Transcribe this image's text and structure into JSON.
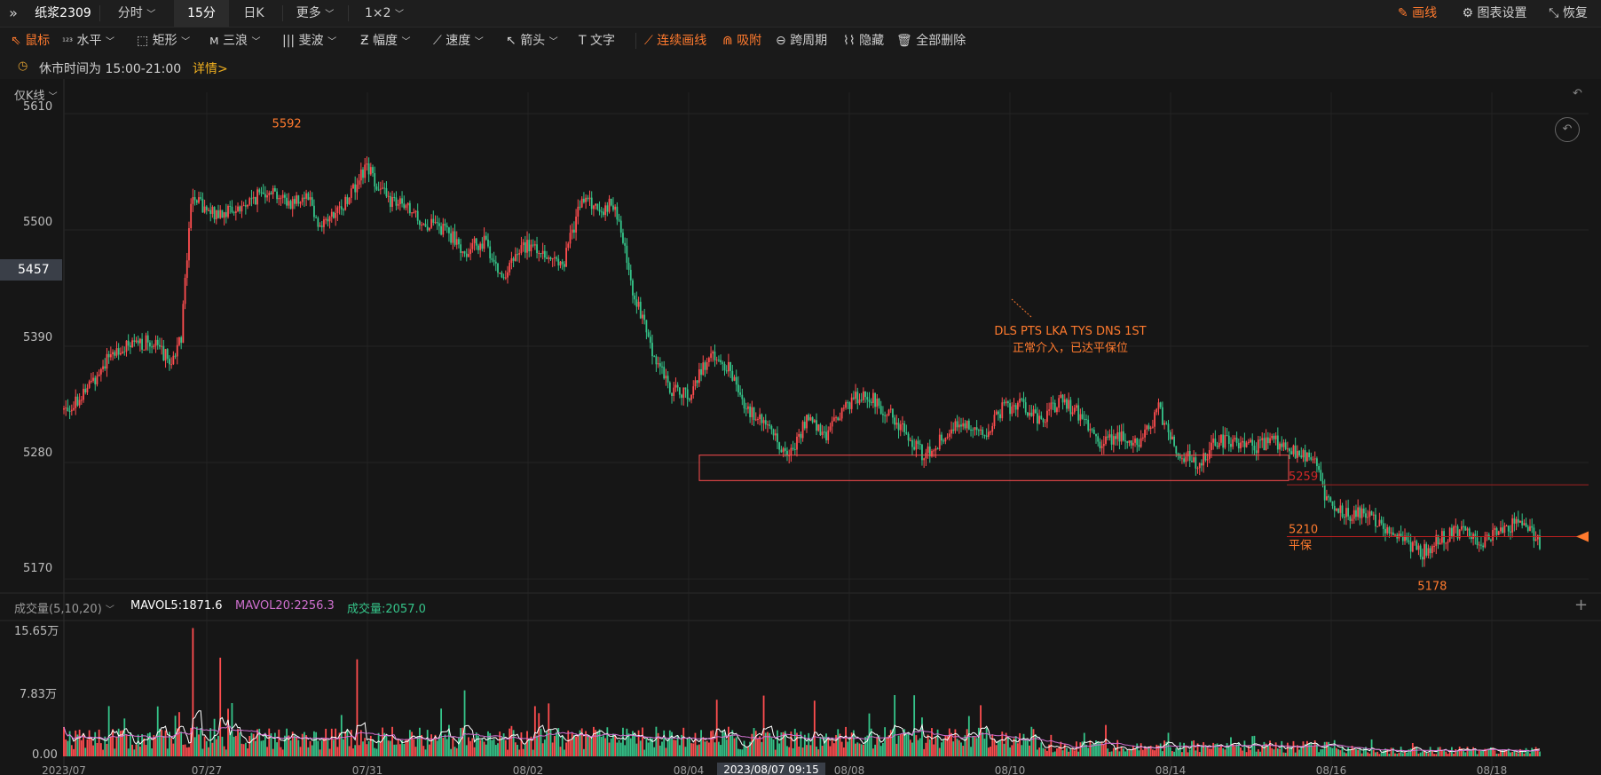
{
  "topbar": {
    "symbol": "纸浆2309",
    "tabs": [
      "分时",
      "15分",
      "日K",
      "更多",
      "1×2"
    ],
    "right": [
      "画线",
      "图表设置",
      "恢复"
    ]
  },
  "toolbar": {
    "items": [
      "鼠标",
      "水平",
      "矩形",
      "三浪",
      "斐波",
      "幅度",
      "速度",
      "箭头",
      "文字",
      "连续画线",
      "吸附",
      "跨周期",
      "隐藏",
      "全部删除"
    ]
  },
  "notice": {
    "text": "休市时间为 15:00-21:00",
    "link": "详情>"
  },
  "price_panel": {
    "mode": "仅K线",
    "yticks": [
      "5610",
      "5500",
      "5390",
      "5280",
      "5170"
    ],
    "current_price": "5457",
    "high_label": "5592",
    "low_label": "5178",
    "level_5259": "5259",
    "level_5210": "5210",
    "breakeven": "平保",
    "annotation_line1": "DLS PTS LKA TYS DNS 1ST",
    "annotation_line2": "正常介入，已达平保位"
  },
  "volume_panel": {
    "title": "成交量(5,10,20)",
    "mavol5": "MAVOL5:1871.6",
    "mavol20": "MAVOL20:2256.3",
    "volume": "成交量:2057.0",
    "yticks": [
      "15.65万",
      "7.83万",
      "0.00"
    ]
  },
  "xaxis": {
    "labels": [
      "2023/07",
      "07/27",
      "07/31",
      "08/02",
      "08/04",
      "08/08",
      "08/10",
      "08/14",
      "08/16",
      "08/18"
    ],
    "cursor": "2023/08/07 09:15"
  },
  "colors": {
    "up": "#ff4d4f",
    "down": "#35c58a",
    "accent": "#ff7a2e",
    "mavol5": "#ffffff",
    "mavol20": "#d070d0"
  },
  "chart_data": {
    "type": "candlestick",
    "ylim": [
      5160,
      5615
    ],
    "vol_ylim": [
      0,
      156500
    ],
    "keypoints": [
      [
        0,
        5330
      ],
      [
        10,
        5345
      ],
      [
        25,
        5385
      ],
      [
        35,
        5390
      ],
      [
        45,
        5395
      ],
      [
        55,
        5375
      ],
      [
        60,
        5400
      ],
      [
        65,
        5530
      ],
      [
        75,
        5515
      ],
      [
        90,
        5520
      ],
      [
        105,
        5540
      ],
      [
        115,
        5525
      ],
      [
        125,
        5535
      ],
      [
        130,
        5505
      ],
      [
        140,
        5515
      ],
      [
        150,
        5545
      ],
      [
        155,
        5560
      ],
      [
        165,
        5530
      ],
      [
        175,
        5520
      ],
      [
        185,
        5505
      ],
      [
        195,
        5500
      ],
      [
        205,
        5480
      ],
      [
        215,
        5490
      ],
      [
        225,
        5455
      ],
      [
        235,
        5485
      ],
      [
        245,
        5480
      ],
      [
        255,
        5465
      ],
      [
        265,
        5530
      ],
      [
        275,
        5520
      ],
      [
        282,
        5525
      ],
      [
        290,
        5450
      ],
      [
        300,
        5390
      ],
      [
        310,
        5350
      ],
      [
        320,
        5345
      ],
      [
        330,
        5380
      ],
      [
        340,
        5370
      ],
      [
        350,
        5330
      ],
      [
        360,
        5315
      ],
      [
        370,
        5285
      ],
      [
        380,
        5320
      ],
      [
        390,
        5305
      ],
      [
        400,
        5335
      ],
      [
        410,
        5345
      ],
      [
        420,
        5330
      ],
      [
        430,
        5310
      ],
      [
        440,
        5285
      ],
      [
        450,
        5305
      ],
      [
        460,
        5320
      ],
      [
        470,
        5305
      ],
      [
        480,
        5330
      ],
      [
        490,
        5335
      ],
      [
        500,
        5320
      ],
      [
        510,
        5340
      ],
      [
        520,
        5325
      ],
      [
        530,
        5300
      ],
      [
        540,
        5305
      ],
      [
        550,
        5295
      ],
      [
        560,
        5330
      ],
      [
        570,
        5290
      ],
      [
        580,
        5280
      ],
      [
        590,
        5300
      ],
      [
        600,
        5300
      ],
      [
        610,
        5295
      ],
      [
        620,
        5300
      ],
      [
        630,
        5290
      ],
      [
        640,
        5285
      ],
      [
        645,
        5250
      ],
      [
        655,
        5230
      ],
      [
        665,
        5235
      ],
      [
        675,
        5220
      ],
      [
        685,
        5205
      ],
      [
        695,
        5195
      ],
      [
        705,
        5210
      ],
      [
        715,
        5215
      ],
      [
        725,
        5205
      ],
      [
        735,
        5215
      ],
      [
        745,
        5225
      ],
      [
        755,
        5205
      ]
    ],
    "bars": 756
  }
}
